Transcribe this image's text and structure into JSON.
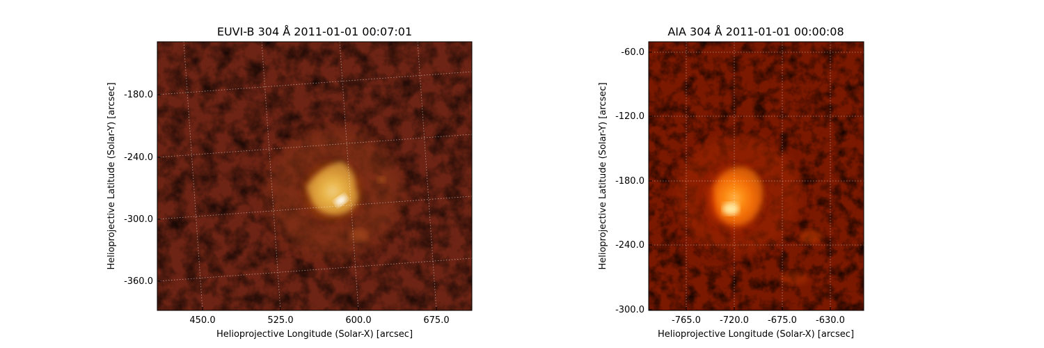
{
  "panels": [
    {
      "title": "EUVI-B 304 Å 2011-01-01 00:07:01",
      "xlabel": "Helioprojective Longitude (Solar-X) [arcsec]",
      "ylabel": "Helioprojective Latitude (Solar-Y) [arcsec]",
      "xticks": [
        "450.0",
        "525.0",
        "600.0",
        "675.0"
      ],
      "yticks": [
        "-180.0",
        "-240.0",
        "-300.0",
        "-360.0"
      ]
    },
    {
      "title": "AIA 304 Å 2011-01-01 00:00:08",
      "xlabel": "Helioprojective Longitude (Solar-X) [arcsec]",
      "ylabel": "Helioprojective Latitude (Solar-Y) [arcsec]",
      "xticks": [
        "-765.0",
        "-720.0",
        "-675.0",
        "-630.0"
      ],
      "yticks": [
        "-60.0",
        "-120.0",
        "-180.0",
        "-240.0",
        "-300.0"
      ]
    }
  ],
  "colors": {
    "colormap": "sdoaia304",
    "background": "#2a0700",
    "bright": "#fff3c0"
  }
}
